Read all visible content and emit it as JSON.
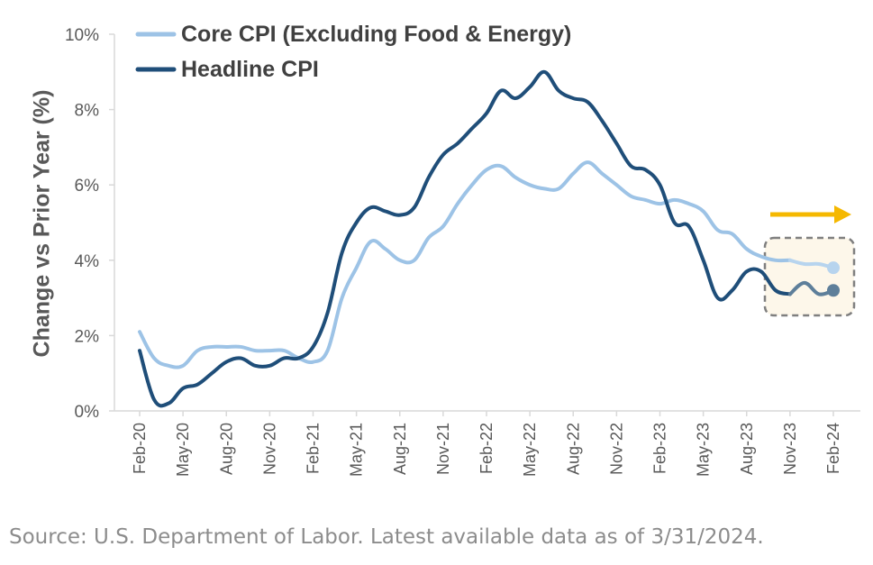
{
  "chart_data": {
    "type": "line",
    "ylabel": "Change vs Prior Year (%)",
    "xlabel": "",
    "ylim": [
      0,
      10
    ],
    "yticks": [
      0,
      2,
      4,
      6,
      8,
      10
    ],
    "ytick_labels": [
      "0%",
      "2%",
      "4%",
      "6%",
      "8%",
      "10%"
    ],
    "xtick_labels": [
      "Feb-20",
      "May-20",
      "Aug-20",
      "Nov-20",
      "Feb-21",
      "May-21",
      "Aug-21",
      "Nov-21",
      "Feb-22",
      "May-22",
      "Aug-22",
      "Nov-22",
      "Feb-23",
      "May-23",
      "Aug-23",
      "Nov-23",
      "Feb-24"
    ],
    "legend_position": "top-left",
    "highlight": "dashed box around Nov-23 to Feb-24 with right-pointing arrow",
    "x": [
      "Feb-20",
      "Mar-20",
      "Apr-20",
      "May-20",
      "Jun-20",
      "Jul-20",
      "Aug-20",
      "Sep-20",
      "Oct-20",
      "Nov-20",
      "Dec-20",
      "Jan-21",
      "Feb-21",
      "Mar-21",
      "Apr-21",
      "May-21",
      "Jun-21",
      "Jul-21",
      "Aug-21",
      "Sep-21",
      "Oct-21",
      "Nov-21",
      "Dec-21",
      "Jan-22",
      "Feb-22",
      "Mar-22",
      "Apr-22",
      "May-22",
      "Jun-22",
      "Jul-22",
      "Aug-22",
      "Sep-22",
      "Oct-22",
      "Nov-22",
      "Dec-22",
      "Jan-23",
      "Feb-23",
      "Mar-23",
      "Apr-23",
      "May-23",
      "Jun-23",
      "Jul-23",
      "Aug-23",
      "Sep-23",
      "Oct-23",
      "Nov-23",
      "Dec-23",
      "Jan-24",
      "Feb-24"
    ],
    "series": [
      {
        "name": "Core CPI (Excluding Food & Energy)",
        "color": "#9dc3e6",
        "values": [
          2.1,
          1.4,
          1.2,
          1.2,
          1.6,
          1.7,
          1.7,
          1.7,
          1.6,
          1.6,
          1.6,
          1.4,
          1.3,
          1.6,
          3.0,
          3.8,
          4.5,
          4.3,
          4.0,
          4.0,
          4.6,
          4.9,
          5.5,
          6.0,
          6.4,
          6.5,
          6.2,
          6.0,
          5.9,
          5.9,
          6.3,
          6.6,
          6.3,
          6.0,
          5.7,
          5.6,
          5.5,
          5.6,
          5.5,
          5.3,
          4.8,
          4.7,
          4.3,
          4.1,
          4.0,
          4.0,
          3.9,
          3.9,
          3.8
        ]
      },
      {
        "name": "Headline CPI",
        "color": "#1f4e79",
        "values": [
          1.6,
          0.3,
          0.2,
          0.6,
          0.7,
          1.0,
          1.3,
          1.4,
          1.2,
          1.2,
          1.4,
          1.4,
          1.7,
          2.6,
          4.2,
          5.0,
          5.4,
          5.3,
          5.2,
          5.4,
          6.2,
          6.8,
          7.1,
          7.5,
          7.9,
          8.5,
          8.3,
          8.6,
          9.0,
          8.5,
          8.3,
          8.2,
          7.7,
          7.1,
          6.5,
          6.4,
          6.0,
          5.0,
          4.9,
          4.0,
          3.0,
          3.2,
          3.7,
          3.7,
          3.2,
          3.1,
          3.4,
          3.1,
          3.2
        ]
      }
    ]
  },
  "source_text": "Source: U.S. Department of Labor. Latest available data as of 3/31/2024."
}
